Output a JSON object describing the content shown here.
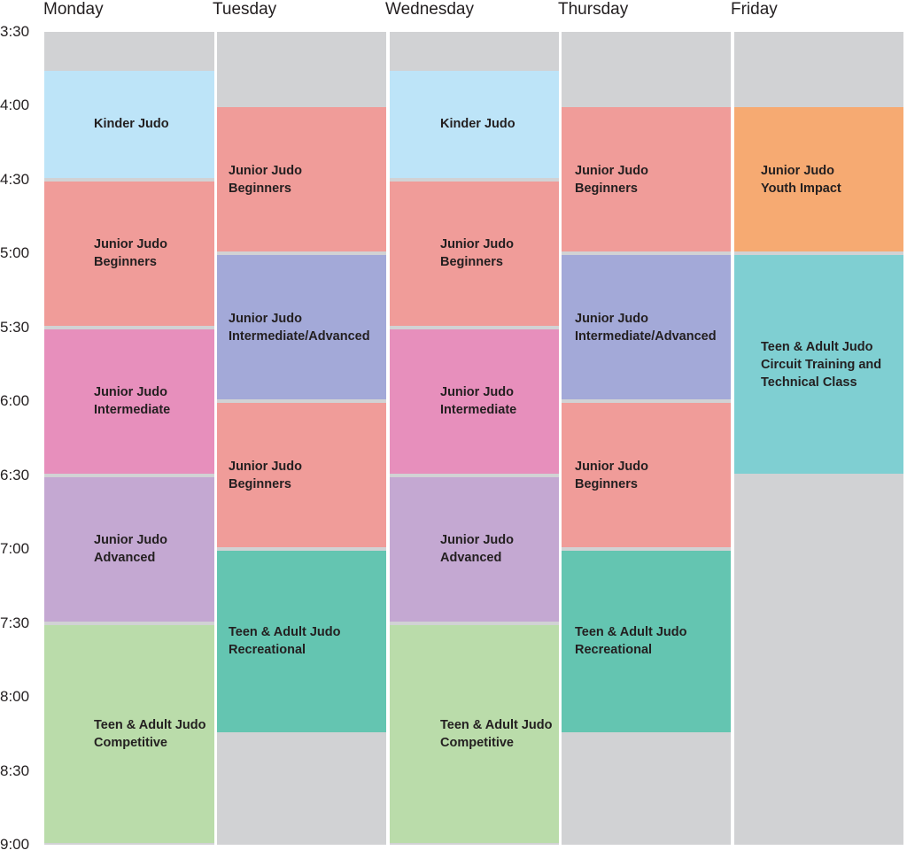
{
  "schedule": {
    "days": [
      "Monday",
      "Tuesday",
      "Wednesday",
      "Thursday",
      "Friday"
    ],
    "times": [
      "3:30",
      "4:00",
      "4:30",
      "5:00",
      "5:30",
      "6:00",
      "6:30",
      "7:00",
      "7:30",
      "8:00",
      "8:30",
      "9:00"
    ],
    "colors": {
      "empty": "#d1d2d4",
      "kinder": "#bde4f8",
      "beginners": "#f09c99",
      "intermediate": "#e78fbc",
      "advanced": "#c4a8d2",
      "intermediate_advanced": "#a3a9d8",
      "competitive": "#badcaa",
      "recreational": "#64c5b1",
      "youth_impact": "#f6aa72",
      "circuit": "#7fcfd2"
    },
    "columns": [
      {
        "day": "Monday",
        "classes": [
          {
            "label": "Kinder Judo",
            "start": "3:45",
            "end": "4:30",
            "color_key": "kinder"
          },
          {
            "label": "Junior Judo\nBeginners",
            "start": "4:30",
            "end": "5:30",
            "color_key": "beginners"
          },
          {
            "label": "Junior Judo\nIntermediate",
            "start": "5:30",
            "end": "6:30",
            "color_key": "intermediate"
          },
          {
            "label": "Junior Judo\nAdvanced",
            "start": "6:30",
            "end": "7:30",
            "color_key": "advanced"
          },
          {
            "label": "Teen & Adult Judo\nCompetitive",
            "start": "7:30",
            "end": "9:00",
            "color_key": "competitive"
          }
        ]
      },
      {
        "day": "Tuesday",
        "classes": [
          {
            "label": "Junior Judo\nBeginners",
            "start": "4:00",
            "end": "5:00",
            "color_key": "beginners"
          },
          {
            "label": "Junior Judo\nIntermediate/Advanced",
            "start": "5:00",
            "end": "6:00",
            "color_key": "intermediate_advanced"
          },
          {
            "label": "Junior Judo\nBeginners",
            "start": "6:00",
            "end": "7:00",
            "color_key": "beginners"
          },
          {
            "label": "Teen & Adult Judo\nRecreational",
            "start": "7:00",
            "end": "8:15",
            "color_key": "recreational"
          }
        ]
      },
      {
        "day": "Wednesday",
        "classes": [
          {
            "label": "Kinder Judo",
            "start": "3:45",
            "end": "4:30",
            "color_key": "kinder"
          },
          {
            "label": "Junior Judo\nBeginners",
            "start": "4:30",
            "end": "5:30",
            "color_key": "beginners"
          },
          {
            "label": "Junior Judo\nIntermediate",
            "start": "5:30",
            "end": "6:30",
            "color_key": "intermediate"
          },
          {
            "label": "Junior Judo\nAdvanced",
            "start": "6:30",
            "end": "7:30",
            "color_key": "advanced"
          },
          {
            "label": "Teen & Adult Judo\nCompetitive",
            "start": "7:30",
            "end": "9:00",
            "color_key": "competitive"
          }
        ]
      },
      {
        "day": "Thursday",
        "classes": [
          {
            "label": "Junior Judo\nBeginners",
            "start": "4:00",
            "end": "5:00",
            "color_key": "beginners"
          },
          {
            "label": "Junior Judo\nIntermediate/Advanced",
            "start": "5:00",
            "end": "6:00",
            "color_key": "intermediate_advanced"
          },
          {
            "label": "Junior Judo\nBeginners",
            "start": "6:00",
            "end": "7:00",
            "color_key": "beginners"
          },
          {
            "label": "Teen & Adult Judo\nRecreational",
            "start": "7:00",
            "end": "8:15",
            "color_key": "recreational"
          }
        ]
      },
      {
        "day": "Friday",
        "classes": [
          {
            "label": "Junior Judo\nYouth Impact",
            "start": "4:00",
            "end": "5:00",
            "color_key": "youth_impact"
          },
          {
            "label": "Teen & Adult Judo\nCircuit Training and\nTechnical Class",
            "start": "5:00",
            "end": "6:30",
            "color_key": "circuit"
          }
        ]
      }
    ]
  }
}
